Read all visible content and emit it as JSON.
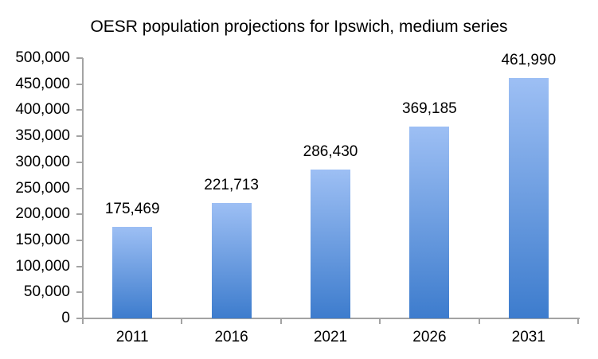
{
  "chart_data": {
    "type": "bar",
    "title": "OESR population projections for Ipswich, medium series",
    "categories": [
      "2011",
      "2016",
      "2021",
      "2026",
      "2031"
    ],
    "values": [
      175469,
      221713,
      286430,
      369185,
      461990
    ],
    "value_labels": [
      "175,469",
      "221,713",
      "286,430",
      "369,185",
      "461,990"
    ],
    "xlabel": "",
    "ylabel": "",
    "ylim": [
      0,
      500000
    ],
    "ytick_step": 50000,
    "ytick_labels": [
      "0",
      "50,000",
      "100,000",
      "150,000",
      "200,000",
      "250,000",
      "300,000",
      "350,000",
      "400,000",
      "450,000",
      "500,000"
    ],
    "grid": false,
    "legend": "none",
    "colors": {
      "bar_gradient_top": "#9dbff4",
      "bar_gradient_bottom": "#3d7ccd",
      "axis_line": "#a3a3a3",
      "text": "#000000",
      "background": "#ffffff"
    }
  }
}
